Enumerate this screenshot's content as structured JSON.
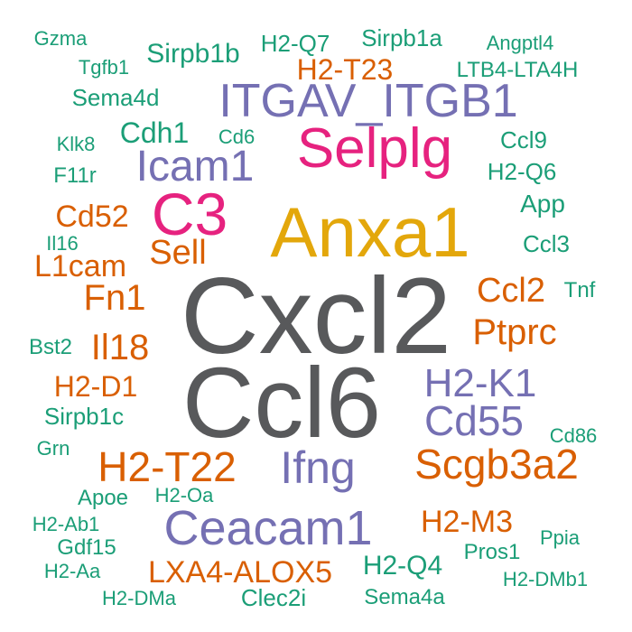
{
  "palette": {
    "gray": "#58595b",
    "gold": "#e3a70b",
    "magenta": "#e6227f",
    "purple": "#7570b3",
    "orange": "#d95f02",
    "teal": "#1b9e77"
  },
  "words": [
    {
      "text": "Cxcl2",
      "color": "gray"
    },
    {
      "text": "Ccl6",
      "color": "gray"
    },
    {
      "text": "Anxa1",
      "color": "gold"
    },
    {
      "text": "Selplg",
      "color": "magenta"
    },
    {
      "text": "C3",
      "color": "magenta"
    },
    {
      "text": "ITGAV_ITGB1",
      "color": "purple"
    },
    {
      "text": "Icam1",
      "color": "purple"
    },
    {
      "text": "H2-K1",
      "color": "purple"
    },
    {
      "text": "Cd55",
      "color": "purple"
    },
    {
      "text": "Ifng",
      "color": "purple"
    },
    {
      "text": "Ceacam1",
      "color": "purple"
    },
    {
      "text": "H2-T23",
      "color": "orange"
    },
    {
      "text": "Cd52",
      "color": "orange"
    },
    {
      "text": "Sell",
      "color": "orange"
    },
    {
      "text": "L1cam",
      "color": "orange"
    },
    {
      "text": "Fn1",
      "color": "orange"
    },
    {
      "text": "Il18",
      "color": "orange"
    },
    {
      "text": "H2-D1",
      "color": "orange"
    },
    {
      "text": "H2-T22",
      "color": "orange"
    },
    {
      "text": "Ccl2",
      "color": "orange"
    },
    {
      "text": "Ptprc",
      "color": "orange"
    },
    {
      "text": "Scgb3a2",
      "color": "orange"
    },
    {
      "text": "H2-M3",
      "color": "orange"
    },
    {
      "text": "LXA4-ALOX5",
      "color": "orange"
    },
    {
      "text": "Gzma",
      "color": "teal"
    },
    {
      "text": "Tgfb1",
      "color": "teal"
    },
    {
      "text": "Sirpb1b",
      "color": "teal"
    },
    {
      "text": "H2-Q7",
      "color": "teal"
    },
    {
      "text": "Sirpb1a",
      "color": "teal"
    },
    {
      "text": "Angptl4",
      "color": "teal"
    },
    {
      "text": "LTB4-LTA4H",
      "color": "teal"
    },
    {
      "text": "Sema4d",
      "color": "teal"
    },
    {
      "text": "Cdh1",
      "color": "teal"
    },
    {
      "text": "Cd6",
      "color": "teal"
    },
    {
      "text": "Klk8",
      "color": "teal"
    },
    {
      "text": "Ccl9",
      "color": "teal"
    },
    {
      "text": "F11r",
      "color": "teal"
    },
    {
      "text": "H2-Q6",
      "color": "teal"
    },
    {
      "text": "App",
      "color": "teal"
    },
    {
      "text": "Il16",
      "color": "teal"
    },
    {
      "text": "Ccl3",
      "color": "teal"
    },
    {
      "text": "Tnf",
      "color": "teal"
    },
    {
      "text": "Bst2",
      "color": "teal"
    },
    {
      "text": "Sirpb1c",
      "color": "teal"
    },
    {
      "text": "Cd86",
      "color": "teal"
    },
    {
      "text": "Grn",
      "color": "teal"
    },
    {
      "text": "Apoe",
      "color": "teal"
    },
    {
      "text": "H2-Oa",
      "color": "teal"
    },
    {
      "text": "H2-Ab1",
      "color": "teal"
    },
    {
      "text": "Gdf15",
      "color": "teal"
    },
    {
      "text": "Ppia",
      "color": "teal"
    },
    {
      "text": "H2-Aa",
      "color": "teal"
    },
    {
      "text": "Pros1",
      "color": "teal"
    },
    {
      "text": "H2-Q4",
      "color": "teal"
    },
    {
      "text": "H2-DMb1",
      "color": "teal"
    },
    {
      "text": "H2-DMa",
      "color": "teal"
    },
    {
      "text": "Clec2i",
      "color": "teal"
    },
    {
      "text": "Sema4a",
      "color": "teal"
    }
  ]
}
